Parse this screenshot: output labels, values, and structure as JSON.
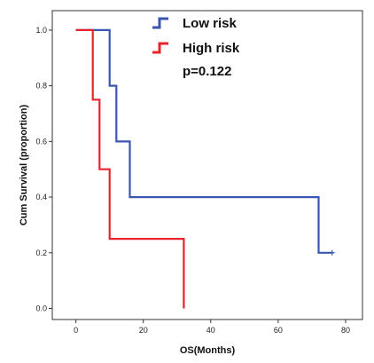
{
  "chart_data": {
    "type": "line",
    "step": true,
    "xlabel": "OS(Months)",
    "ylabel": "Cum Survival (proportion)",
    "xlim": [
      -7,
      85
    ],
    "ylim": [
      -0.04,
      1.07
    ],
    "x_ticks": [
      "0",
      "20",
      "40",
      "60",
      "80"
    ],
    "y_ticks": [
      "0.0",
      "0.2",
      "0.4",
      "0.6",
      "0.8",
      "1.0"
    ],
    "grid": false,
    "legend_position": "top-center",
    "annotation": "p=0.122",
    "series": [
      {
        "name": "Low risk",
        "color": "#3a56b0",
        "points": [
          [
            0,
            1.0
          ],
          [
            10,
            1.0
          ],
          [
            10,
            0.8
          ],
          [
            12,
            0.8
          ],
          [
            12,
            0.6
          ],
          [
            16,
            0.6
          ],
          [
            16,
            0.4
          ],
          [
            72,
            0.4
          ],
          [
            72,
            0.2
          ],
          [
            76,
            0.2
          ]
        ],
        "censored": [
          [
            76,
            0.2
          ]
        ]
      },
      {
        "name": "High risk",
        "color": "#e8232b",
        "points": [
          [
            0,
            1.0
          ],
          [
            5,
            1.0
          ],
          [
            5,
            0.75
          ],
          [
            7,
            0.75
          ],
          [
            7,
            0.5
          ],
          [
            10,
            0.5
          ],
          [
            10,
            0.25
          ],
          [
            32,
            0.25
          ],
          [
            32,
            0.0
          ]
        ],
        "censored": []
      }
    ]
  }
}
